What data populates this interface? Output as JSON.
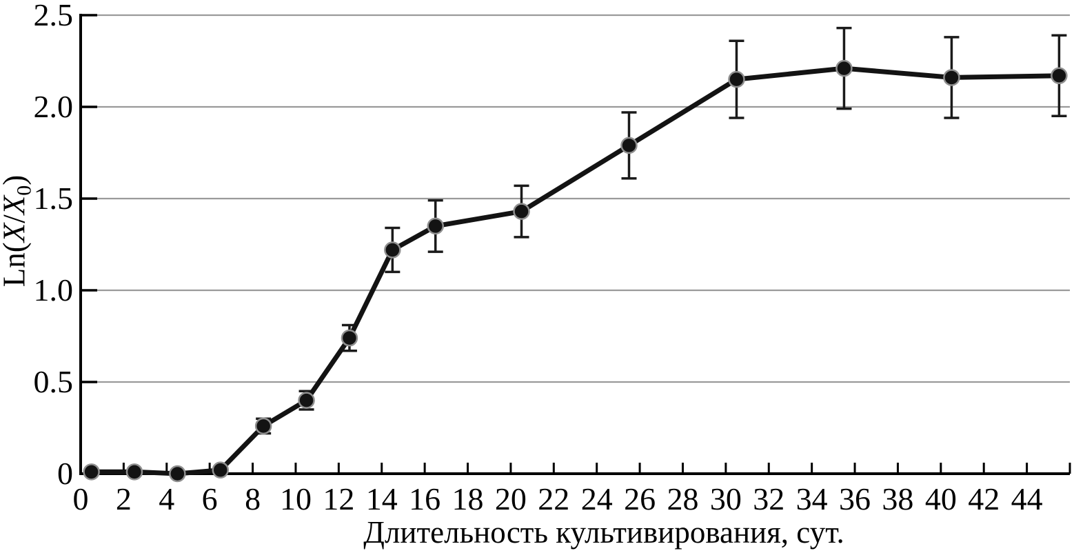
{
  "chart_data": {
    "type": "line",
    "title": "",
    "xlabel": "Длительность культивирования, сут.",
    "ylabel": "Ln(X/X0)",
    "ylabel_parts": [
      {
        "t": "Ln(",
        "style": "normal"
      },
      {
        "t": "X",
        "style": "italic"
      },
      {
        "t": "/",
        "style": "normal"
      },
      {
        "t": "X",
        "style": "italic"
      },
      {
        "t": "0",
        "style": "sub"
      },
      {
        "t": ")",
        "style": "normal"
      }
    ],
    "x": [
      0.5,
      2.5,
      4.5,
      6.5,
      8.5,
      10.5,
      12.5,
      14.5,
      16.5,
      20.5,
      25.5,
      30.5,
      35.5,
      40.5,
      45.5
    ],
    "y": [
      0.01,
      0.01,
      0.0,
      0.02,
      0.26,
      0.4,
      0.74,
      1.22,
      1.35,
      1.43,
      1.79,
      2.15,
      2.21,
      2.16,
      2.17
    ],
    "yerr": [
      0,
      0,
      0,
      0,
      0.04,
      0.05,
      0.07,
      0.12,
      0.14,
      0.14,
      0.18,
      0.21,
      0.22,
      0.22,
      0.22
    ],
    "xlim": [
      0,
      46
    ],
    "ylim": [
      0,
      2.5
    ],
    "x_ticks": [
      0,
      2,
      4,
      6,
      8,
      10,
      12,
      14,
      16,
      18,
      20,
      22,
      24,
      26,
      28,
      30,
      32,
      34,
      36,
      38,
      40,
      42,
      44
    ],
    "x_axis_end_tick": 46,
    "y_ticks": [
      {
        "value": 0,
        "label": "0"
      },
      {
        "value": 0.5,
        "label": "0.5"
      },
      {
        "value": 1.0,
        "label": "1.0"
      },
      {
        "value": 1.5,
        "label": "1.5"
      },
      {
        "value": 2.0,
        "label": "2.0"
      },
      {
        "value": 2.5,
        "label": "2.5"
      }
    ],
    "grid": "horizontal-only",
    "legend": "none",
    "marker": "filled-circle",
    "error_bars": "vertical-with-caps",
    "colors": {
      "line": "#131313",
      "marker_fill": "#131313",
      "marker_stroke": "#8f8f8f",
      "error_bar": "#1a1a1a",
      "grid": "#9a9a9a",
      "axis": "#000000",
      "text": "#000000",
      "background": "#ffffff"
    }
  }
}
